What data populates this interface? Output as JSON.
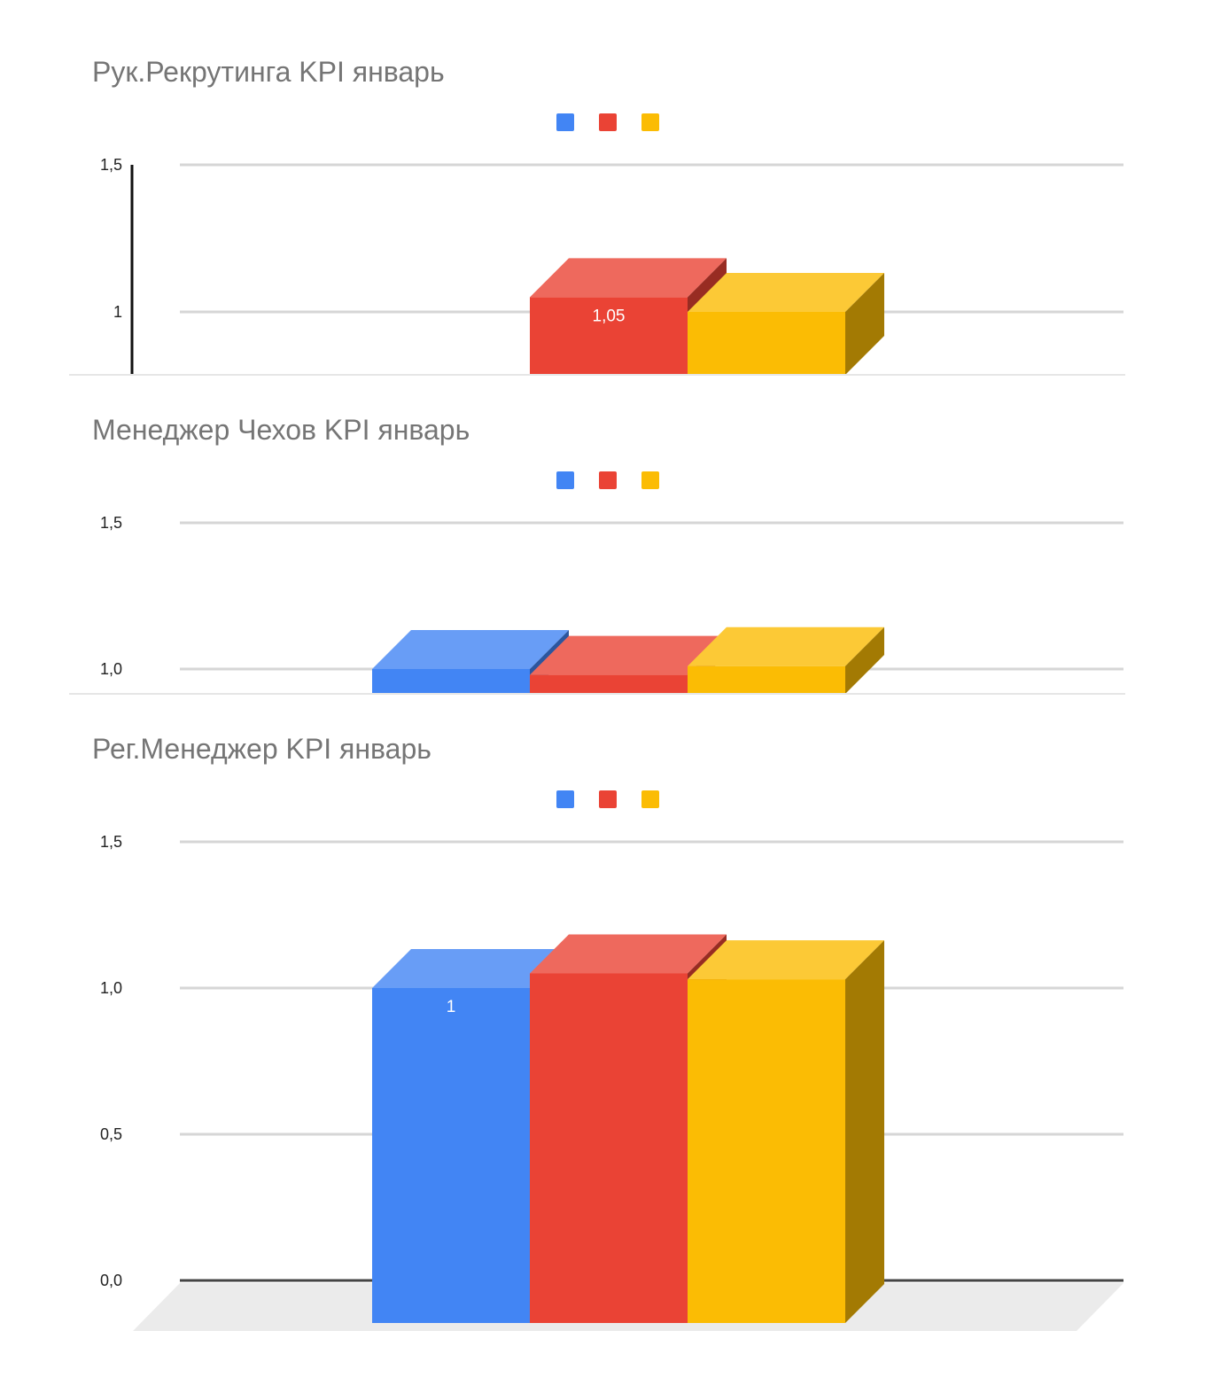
{
  "chart_data": [
    {
      "type": "bar",
      "style": "3d",
      "title": "Рук.Рекрутинга KPI январь",
      "y_ticks": [
        "1",
        "1,5"
      ],
      "ylim_visible": [
        0.785,
        1.5
      ],
      "grid": true,
      "legend": "top-center",
      "series": [
        {
          "color": "#4285F4",
          "values": [
            null
          ]
        },
        {
          "color": "#EA4335",
          "values": [
            1.05
          ],
          "data_label": "1,05"
        },
        {
          "color": "#FBBC04",
          "values": [
            1.0
          ]
        }
      ]
    },
    {
      "type": "bar",
      "style": "3d",
      "title": "Менеджер Чехов KPI январь",
      "y_ticks": [
        "1,0",
        "1,5"
      ],
      "ylim_visible": [
        0.91,
        1.5
      ],
      "grid": true,
      "legend": "top-center",
      "series": [
        {
          "color": "#4285F4",
          "values": [
            1.0
          ]
        },
        {
          "color": "#EA4335",
          "values": [
            0.98
          ]
        },
        {
          "color": "#FBBC04",
          "values": [
            1.01
          ]
        }
      ]
    },
    {
      "type": "bar",
      "style": "3d",
      "title": "Рег.Менеджер KPI январь",
      "y_ticks": [
        "0,0",
        "0,5",
        "1,0",
        "1,5"
      ],
      "ylim": [
        0,
        1.5
      ],
      "grid": true,
      "legend": "top-center",
      "series": [
        {
          "color": "#4285F4",
          "values": [
            1.0
          ],
          "data_label": "1"
        },
        {
          "color": "#EA4335",
          "values": [
            1.05
          ]
        },
        {
          "color": "#FBBC04",
          "values": [
            1.03
          ]
        }
      ]
    }
  ]
}
